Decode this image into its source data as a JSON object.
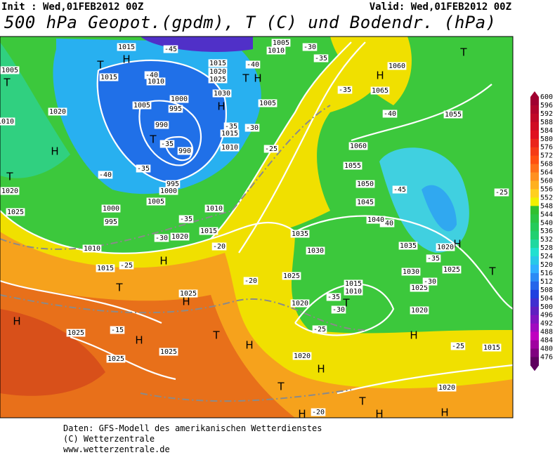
{
  "header": {
    "init": "Init : Wed,01FEB2012 00Z",
    "valid": "Valid: Wed,01FEB2012 00Z",
    "title": "500 hPa Geopot.(gpdm), T (C) und Bodendr. (hPa)"
  },
  "colorbar": {
    "labels": [
      600,
      596,
      592,
      588,
      584,
      580,
      576,
      572,
      568,
      564,
      560,
      556,
      552,
      548,
      544,
      540,
      536,
      532,
      528,
      524,
      520,
      516,
      512,
      508,
      504,
      500,
      496,
      492,
      488,
      484,
      480,
      476
    ]
  },
  "map_labels": [
    "1015",
    "-45",
    "1005",
    "1010",
    "H",
    "T",
    "1015",
    "-40",
    "1010",
    "1015",
    "-40",
    "1020",
    "1025",
    "T",
    "H",
    "1030",
    "1000",
    "995",
    "1005",
    "H",
    "1005",
    "1020",
    "990",
    "T",
    "-35",
    "990",
    "-35",
    "-40",
    "995",
    "1000",
    "1005",
    "1010",
    "H",
    "T",
    "1020",
    "1025",
    "1000",
    "995",
    "-35",
    "-30",
    "1020",
    "1015",
    "1010",
    "1015",
    "-25",
    "H",
    "-20",
    "T",
    "1025",
    "H",
    "-20",
    "H",
    "1025",
    "-15",
    "H",
    "1025",
    "1025",
    "T",
    "H",
    "1020",
    "H",
    "T",
    "H",
    "-20",
    "T",
    "H",
    "H",
    "1020",
    "H",
    "-25",
    "1015",
    "1020",
    "1025",
    "-30",
    "1030",
    "H",
    "1020",
    "-35",
    "1025",
    "T",
    "1035",
    "-40",
    "1040",
    "1045",
    "1050",
    "-45",
    "-25",
    "1055",
    "1060",
    "1055",
    "-40",
    "1065",
    "-35",
    "1060",
    "T",
    "H",
    "-30",
    "-35",
    "-30",
    "-35",
    "1015",
    "1010",
    "-25",
    "1005",
    "T",
    "1010",
    "1035",
    "1030",
    "1025",
    "1020",
    "1015",
    "1010",
    "-35",
    "-30",
    "T",
    "-25"
  ],
  "footer": [
    "Daten: GFS-Modell des amerikanischen Wetterdienstes",
    "(C) Wetterzentrale",
    "www.wetterzentrale.de"
  ]
}
